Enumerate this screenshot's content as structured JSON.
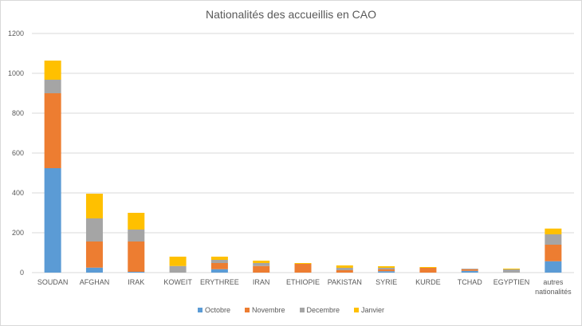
{
  "chart_data": {
    "type": "bar",
    "stacked": true,
    "title": "Nationalités des accueillis  en CAO",
    "categories": [
      "SOUDAN",
      "AFGHAN",
      "IRAK",
      "KOWEIT",
      "ERYTHREE",
      "IRAN",
      "ETHIOPIE",
      "PAKISTAN",
      "SYRIE",
      "KURDE",
      "TCHAD",
      "EGYPTIEN",
      "autres nationalités"
    ],
    "series": [
      {
        "name": "Octobre",
        "color": "#5b9bd5",
        "values": [
          524,
          25,
          4,
          0,
          17,
          0,
          0,
          0,
          7,
          0,
          9,
          0,
          57
        ]
      },
      {
        "name": "Novembre",
        "color": "#ed7d31",
        "values": [
          376,
          131,
          152,
          0,
          31,
          33,
          44,
          12,
          9,
          24,
          8,
          0,
          83
        ]
      },
      {
        "name": "Decembre",
        "color": "#a5a5a5",
        "values": [
          68,
          116,
          60,
          33,
          16,
          15,
          0,
          12,
          8,
          0,
          3,
          16,
          52
        ]
      },
      {
        "name": "Janvier",
        "color": "#ffc000",
        "values": [
          96,
          124,
          84,
          47,
          16,
          12,
          4,
          12,
          8,
          4,
          0,
          4,
          29
        ]
      }
    ],
    "ylim": [
      0,
      1200
    ],
    "yticks": [
      0,
      200,
      400,
      600,
      800,
      1000,
      1200
    ],
    "grid": true,
    "legend_position": "bottom"
  }
}
